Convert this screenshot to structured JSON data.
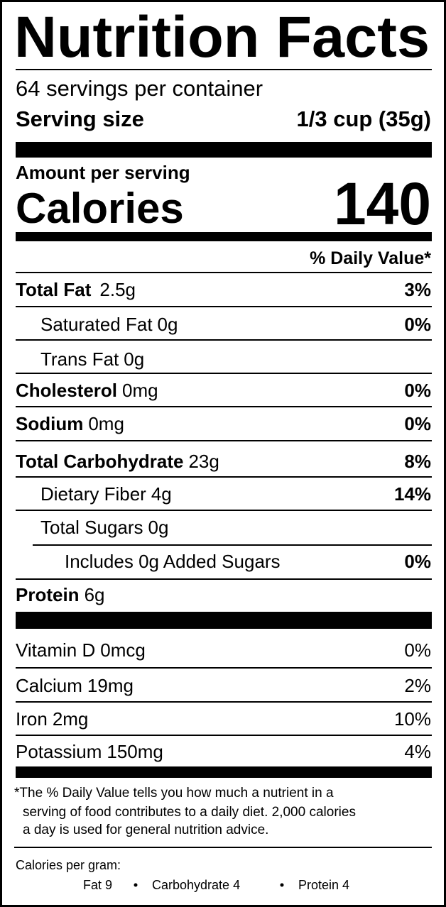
{
  "title": "Nutrition Facts",
  "servings_per_container": "64 servings per container",
  "serving_size": {
    "label": "Serving size",
    "value": "1/3 cup (35g)"
  },
  "amount_per_serving": "Amount per serving",
  "calories": {
    "label": "Calories",
    "value": 140
  },
  "daily_value_header": "% Daily Value*",
  "nutrients": [
    {
      "name": "Total Fat",
      "amount": "2.5g",
      "dv": "3%"
    },
    {
      "name": "Saturated Fat",
      "amount": "0g",
      "dv": "0%"
    },
    {
      "name": "Trans Fat",
      "amount": "0g"
    },
    {
      "name": "Cholesterol",
      "amount": "0mg",
      "dv": "0%"
    },
    {
      "name": "Sodium",
      "amount": "0mg",
      "dv": "0%"
    },
    {
      "name": "Total Carbohydrate",
      "amount": "23g",
      "dv": "8%"
    },
    {
      "name": "Dietary Fiber",
      "amount": "4g",
      "dv": "14%"
    },
    {
      "name": "Total Sugars",
      "amount": "0g"
    },
    {
      "name": "Includes 0g Added Sugars",
      "dv": "0%"
    },
    {
      "name": "Protein",
      "amount": "6g"
    }
  ],
  "vitamins": [
    {
      "name": "Vitamin D",
      "amount": "0mcg",
      "dv": "0%"
    },
    {
      "name": "Calcium",
      "amount": "19mg",
      "dv": "2%"
    },
    {
      "name": "Iron",
      "amount": "2mg",
      "dv": "10%"
    },
    {
      "name": "Potassium",
      "amount": "150mg",
      "dv": "4%"
    }
  ],
  "footnote": [
    "*The % Daily Value tells you how much a nutrient in a",
    "serving of food contributes to a daily diet. 2,000 calories",
    "a day is used for general nutrition advice."
  ],
  "calories_per_gram": {
    "label": "Calories per gram:",
    "items": [
      "Fat 9",
      "Carbohydrate 4",
      "Protein 4"
    ]
  }
}
